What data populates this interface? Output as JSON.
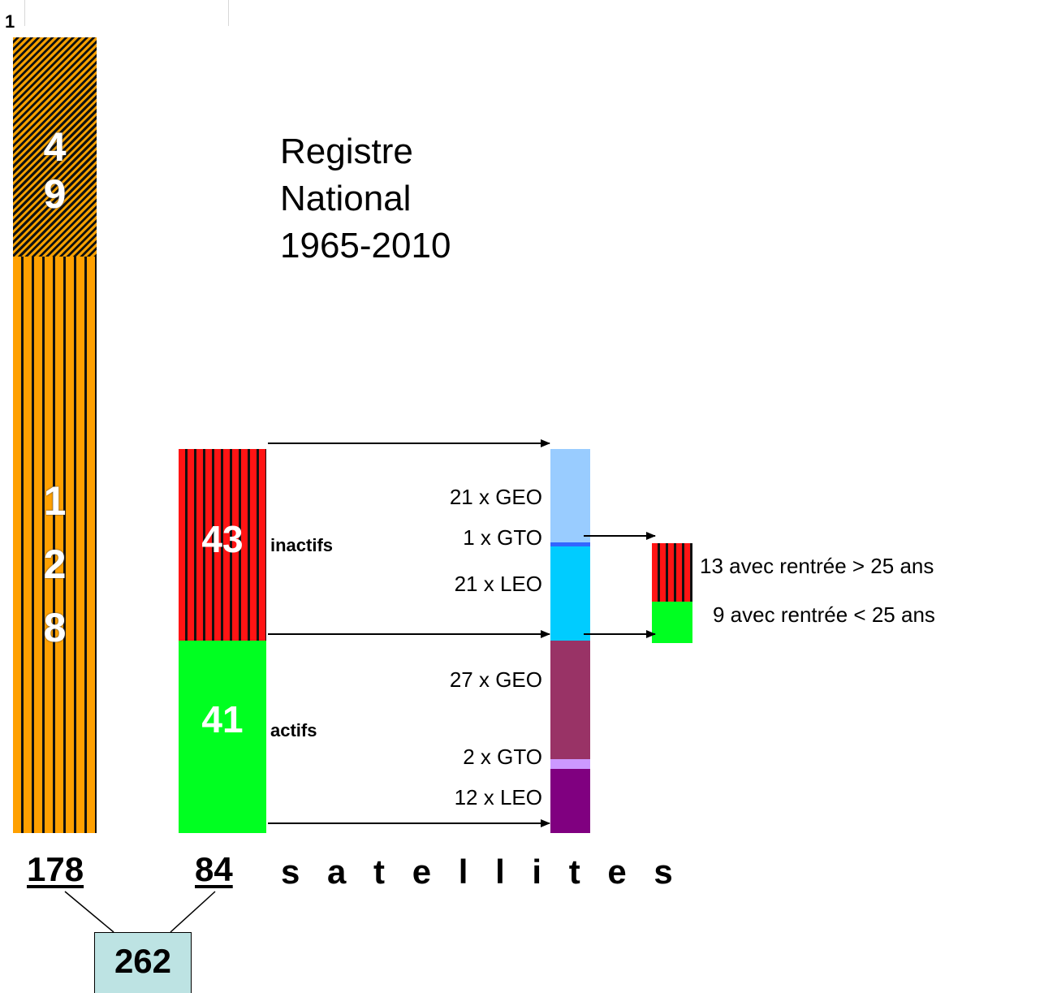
{
  "corner": {
    "number": "1"
  },
  "left_bar": {
    "top_segment_digits": [
      "4",
      "9"
    ],
    "bottom_segment_digits": [
      "1",
      "2",
      "8"
    ]
  },
  "title": {
    "line1": "Registre",
    "line2": "National",
    "line3": "1965-2010"
  },
  "status_boxes": {
    "inactive": {
      "value": "43",
      "label": "inactifs",
      "color": "#ff1414"
    },
    "active": {
      "value": "41",
      "label": "actifs",
      "color": "#00ff21"
    }
  },
  "orbits": {
    "inactive": [
      {
        "label": "21 x GEO",
        "count": 21,
        "color": "#99ccff"
      },
      {
        "label": "1 x GTO",
        "count": 1,
        "color": "#3366ff"
      },
      {
        "label": "21 x LEO",
        "count": 21,
        "color": "#00ccff"
      }
    ],
    "active": [
      {
        "label": "27 x GEO",
        "count": 27,
        "color": "#993366"
      },
      {
        "label": "2 x GTO",
        "count": 2,
        "color": "#cc99ff"
      },
      {
        "label": "12 x LEO",
        "count": 12,
        "color": "#800080"
      }
    ]
  },
  "reentry": {
    "over_25": "13 avec rentrée > 25 ans",
    "under_25": "9 avec rentrée < 25 ans"
  },
  "totals": {
    "left": "178",
    "right": "84",
    "unit": "s a t e l l i t e s",
    "sum": "262"
  }
}
